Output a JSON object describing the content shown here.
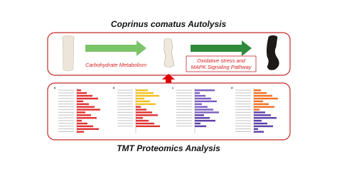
{
  "title": "Coprinus comatus Autolysis",
  "process": {
    "step1": "Carbohydrate Metabolism",
    "step2": [
      "Oxidative stress and",
      "MAPK Signaling Pathway"
    ]
  },
  "panels": [
    "a",
    "b",
    "c",
    "d"
  ],
  "footer": "TMT Proteomics Analysis"
}
